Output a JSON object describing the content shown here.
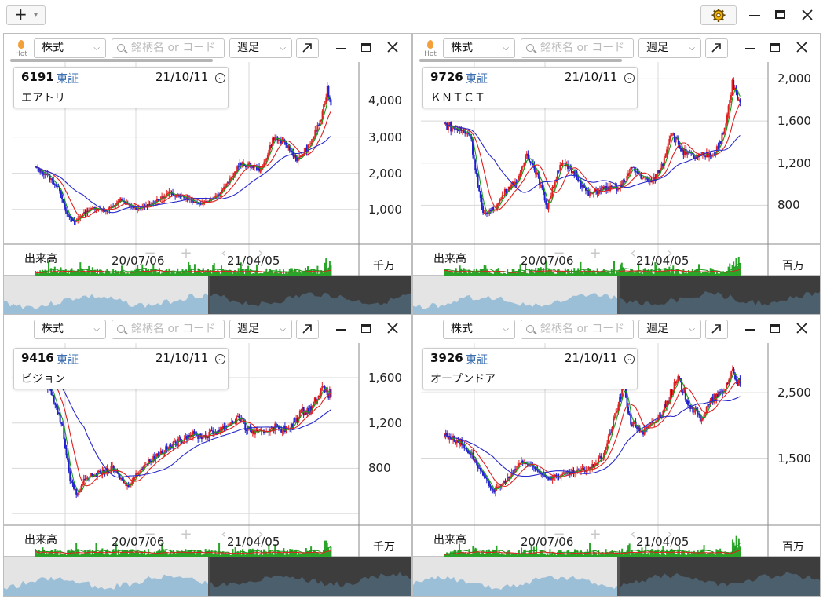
{
  "app": {
    "add_label": "+"
  },
  "common": {
    "hot_label": "Hot",
    "type_select": "株式",
    "search_placeholder": "銘柄名 or コード",
    "period_select": "週足",
    "volume_label": "出来高",
    "x_ticks": [
      "20/07/06",
      "21/04/05"
    ]
  },
  "panels": [
    {
      "code": "6191",
      "exchange": "東証",
      "date": "21/10/11",
      "name": "エアトリ",
      "y_ticks": [
        "4,000",
        "3,000",
        "2,000",
        "1,000"
      ],
      "volume_unit": "千万"
    },
    {
      "code": "9726",
      "exchange": "東証",
      "date": "21/10/11",
      "name": "ＫＮＴＣＴ",
      "y_ticks": [
        "2,000",
        "1,600",
        "1,200",
        "800"
      ],
      "volume_unit": "百万"
    },
    {
      "code": "9416",
      "exchange": "東証",
      "date": "21/10/11",
      "name": "ビジョン",
      "y_ticks": [
        "1,600",
        "1,200",
        "800"
      ],
      "volume_unit": "千万"
    },
    {
      "code": "3926",
      "exchange": "東証",
      "date": "21/10/11",
      "name": "オープンドア",
      "y_ticks": [
        "2,500",
        "1,500"
      ],
      "volume_unit": "百万"
    }
  ],
  "colors": {
    "up": "#e02020",
    "down": "#2020d0",
    "ma_short": "#1a9a1a",
    "ma_mid": "#e02020",
    "ma_long": "#2828cc",
    "volume": "#2aa52a",
    "grid": "#d8d8d8",
    "mini_fill": "#8fb8d6"
  },
  "chart_data": [
    {
      "type": "candlestick",
      "title": "6191 エアトリ",
      "y_ticks": [
        1000,
        2000,
        3000,
        4000
      ],
      "ylim": [
        300,
        4900
      ],
      "path": [
        [
          0,
          2150
        ],
        [
          10,
          1950
        ],
        [
          20,
          1550
        ],
        [
          26,
          850
        ],
        [
          32,
          650
        ],
        [
          40,
          900
        ],
        [
          48,
          1050
        ],
        [
          58,
          950
        ],
        [
          70,
          1250
        ],
        [
          84,
          1000
        ],
        [
          98,
          1200
        ],
        [
          110,
          1450
        ],
        [
          122,
          1350
        ],
        [
          136,
          1150
        ],
        [
          150,
          1400
        ],
        [
          160,
          1800
        ],
        [
          168,
          2250
        ],
        [
          178,
          2200
        ],
        [
          186,
          2100
        ],
        [
          196,
          3000
        ],
        [
          206,
          2800
        ],
        [
          216,
          2350
        ],
        [
          226,
          2800
        ],
        [
          236,
          3600
        ],
        [
          240,
          4350
        ],
        [
          243,
          3900
        ]
      ]
    },
    {
      "type": "candlestick",
      "title": "9726 ＫＮＴＣＴ",
      "y_ticks": [
        800,
        1200,
        1600,
        2000
      ],
      "ylim": [
        520,
        2100
      ],
      "path": [
        [
          0,
          1570
        ],
        [
          10,
          1520
        ],
        [
          20,
          1480
        ],
        [
          26,
          1000
        ],
        [
          30,
          710
        ],
        [
          40,
          780
        ],
        [
          48,
          950
        ],
        [
          58,
          1050
        ],
        [
          64,
          1300
        ],
        [
          72,
          1100
        ],
        [
          80,
          780
        ],
        [
          90,
          1200
        ],
        [
          102,
          1100
        ],
        [
          112,
          900
        ],
        [
          124,
          960
        ],
        [
          136,
          960
        ],
        [
          146,
          1150
        ],
        [
          156,
          1050
        ],
        [
          162,
          1020
        ],
        [
          170,
          1200
        ],
        [
          176,
          1500
        ],
        [
          186,
          1300
        ],
        [
          196,
          1250
        ],
        [
          210,
          1300
        ],
        [
          218,
          1500
        ],
        [
          224,
          1950
        ],
        [
          230,
          1750
        ]
      ]
    },
    {
      "type": "candlestick",
      "title": "9416 ビジョン",
      "y_ticks": [
        800,
        1200,
        1600
      ],
      "ylim": [
        380,
        1850
      ],
      "path": [
        [
          0,
          1800
        ],
        [
          14,
          1450
        ],
        [
          22,
          1150
        ],
        [
          28,
          700
        ],
        [
          34,
          560
        ],
        [
          40,
          720
        ],
        [
          52,
          760
        ],
        [
          62,
          800
        ],
        [
          74,
          640
        ],
        [
          86,
          810
        ],
        [
          98,
          920
        ],
        [
          110,
          1000
        ],
        [
          124,
          1100
        ],
        [
          136,
          1080
        ],
        [
          150,
          1150
        ],
        [
          164,
          1250
        ],
        [
          170,
          1150
        ],
        [
          180,
          1100
        ],
        [
          192,
          1170
        ],
        [
          204,
          1130
        ],
        [
          214,
          1300
        ],
        [
          222,
          1330
        ],
        [
          230,
          1500
        ],
        [
          238,
          1450
        ]
      ]
    },
    {
      "type": "candlestick",
      "title": "3926 オープンドア",
      "y_ticks": [
        1500,
        2500
      ],
      "ylim": [
        620,
        3160
      ],
      "path": [
        [
          0,
          1860
        ],
        [
          12,
          1750
        ],
        [
          22,
          1550
        ],
        [
          32,
          1200
        ],
        [
          40,
          1000
        ],
        [
          52,
          1200
        ],
        [
          62,
          1450
        ],
        [
          72,
          1350
        ],
        [
          84,
          1200
        ],
        [
          96,
          1250
        ],
        [
          108,
          1300
        ],
        [
          118,
          1350
        ],
        [
          128,
          1550
        ],
        [
          136,
          2050
        ],
        [
          144,
          2600
        ],
        [
          150,
          2050
        ],
        [
          160,
          1900
        ],
        [
          172,
          2100
        ],
        [
          180,
          2400
        ],
        [
          188,
          2700
        ],
        [
          198,
          2300
        ],
        [
          206,
          2100
        ],
        [
          216,
          2400
        ],
        [
          224,
          2500
        ],
        [
          232,
          2850
        ],
        [
          238,
          2600
        ]
      ]
    }
  ]
}
